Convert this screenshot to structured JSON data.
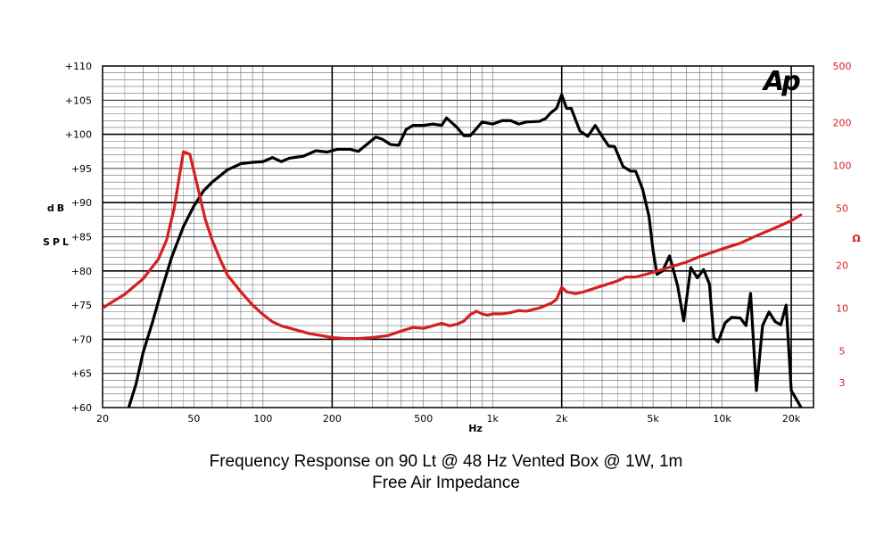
{
  "chart_data": {
    "type": "line",
    "title": "Frequency Response on 90 Lt @ 48 Hz Vented Box @ 1W, 1m",
    "subtitle": "Free Air Impedance",
    "logo": "Ap",
    "xlabel": "Hz",
    "ylabel": "dB SPL",
    "ylabel_right": "Ω",
    "x_scale": "log",
    "xlim": [
      20,
      25000
    ],
    "ylim": [
      60,
      110
    ],
    "ylim_right_log": [
      2,
      500
    ],
    "grid": true,
    "x_ticks": [
      {
        "value": 20,
        "label": "20"
      },
      {
        "value": 50,
        "label": "50"
      },
      {
        "value": 100,
        "label": "100"
      },
      {
        "value": 200,
        "label": "200"
      },
      {
        "value": 500,
        "label": "500"
      },
      {
        "value": 1000,
        "label": "1k"
      },
      {
        "value": 2000,
        "label": "2k"
      },
      {
        "value": 5000,
        "label": "5k"
      },
      {
        "value": 10000,
        "label": "10k"
      },
      {
        "value": 20000,
        "label": "20k"
      }
    ],
    "y_ticks": [
      {
        "value": 60,
        "label": "+60"
      },
      {
        "value": 65,
        "label": "+65"
      },
      {
        "value": 70,
        "label": "+70"
      },
      {
        "value": 75,
        "label": "+75"
      },
      {
        "value": 80,
        "label": "+80"
      },
      {
        "value": 85,
        "label": "+85"
      },
      {
        "value": 90,
        "label": "+90"
      },
      {
        "value": 95,
        "label": "+95"
      },
      {
        "value": 100,
        "label": "+100"
      },
      {
        "value": 105,
        "label": "+105"
      },
      {
        "value": 110,
        "label": "+110"
      }
    ],
    "y_right_ticks": [
      {
        "value": 3,
        "label": "3"
      },
      {
        "value": 5,
        "label": "5"
      },
      {
        "value": 10,
        "label": "10"
      },
      {
        "value": 20,
        "label": "20"
      },
      {
        "value": 50,
        "label": "50"
      },
      {
        "value": 100,
        "label": "100"
      },
      {
        "value": 200,
        "label": "200"
      },
      {
        "value": 500,
        "label": "500"
      }
    ],
    "series": [
      {
        "name": "Frequency Response (dB SPL)",
        "color": "#000000",
        "axis": "left",
        "points": [
          [
            26,
            60
          ],
          [
            28,
            63.5
          ],
          [
            30,
            68
          ],
          [
            33,
            72.5
          ],
          [
            36,
            77
          ],
          [
            40,
            82
          ],
          [
            45,
            86.5
          ],
          [
            50,
            89.5
          ],
          [
            55,
            91.7
          ],
          [
            60,
            93
          ],
          [
            70,
            94.8
          ],
          [
            80,
            95.7
          ],
          [
            90,
            95.9
          ],
          [
            100,
            96
          ],
          [
            110,
            96.6
          ],
          [
            120,
            96
          ],
          [
            130,
            96.5
          ],
          [
            150,
            96.8
          ],
          [
            170,
            97.6
          ],
          [
            190,
            97.4
          ],
          [
            210,
            97.8
          ],
          [
            240,
            97.8
          ],
          [
            260,
            97.5
          ],
          [
            290,
            98.8
          ],
          [
            310,
            99.6
          ],
          [
            330,
            99.3
          ],
          [
            360,
            98.5
          ],
          [
            390,
            98.4
          ],
          [
            420,
            100.7
          ],
          [
            450,
            101.3
          ],
          [
            500,
            101.3
          ],
          [
            550,
            101.5
          ],
          [
            600,
            101.3
          ],
          [
            630,
            102.4
          ],
          [
            700,
            101
          ],
          [
            750,
            99.8
          ],
          [
            800,
            99.8
          ],
          [
            900,
            101.8
          ],
          [
            1000,
            101.5
          ],
          [
            1100,
            102
          ],
          [
            1200,
            102
          ],
          [
            1300,
            101.5
          ],
          [
            1400,
            101.8
          ],
          [
            1600,
            101.9
          ],
          [
            1700,
            102.3
          ],
          [
            1800,
            103.2
          ],
          [
            1900,
            103.8
          ],
          [
            2000,
            105.8
          ],
          [
            2100,
            103.8
          ],
          [
            2200,
            103.8
          ],
          [
            2400,
            100.5
          ],
          [
            2600,
            99.7
          ],
          [
            2800,
            101.3
          ],
          [
            3000,
            99.7
          ],
          [
            3200,
            98.3
          ],
          [
            3400,
            98.2
          ],
          [
            3700,
            95.3
          ],
          [
            4000,
            94.6
          ],
          [
            4200,
            94.6
          ],
          [
            4500,
            92
          ],
          [
            4800,
            88
          ],
          [
            5000,
            83
          ],
          [
            5200,
            79.5
          ],
          [
            5500,
            80
          ],
          [
            5900,
            82.2
          ],
          [
            6400,
            77.8
          ],
          [
            6800,
            72.7
          ],
          [
            7300,
            80.5
          ],
          [
            7800,
            79
          ],
          [
            8300,
            80.2
          ],
          [
            8800,
            78.1
          ],
          [
            9200,
            70.2
          ],
          [
            9600,
            69.6
          ],
          [
            10300,
            72.4
          ],
          [
            11000,
            73.2
          ],
          [
            12000,
            73.1
          ],
          [
            12700,
            72
          ],
          [
            13300,
            76.7
          ],
          [
            14100,
            62.5
          ],
          [
            15000,
            72
          ],
          [
            16000,
            74
          ],
          [
            17000,
            72.6
          ],
          [
            18000,
            72.1
          ],
          [
            19000,
            75
          ],
          [
            20000,
            62.5
          ],
          [
            22000,
            60.1
          ]
        ]
      },
      {
        "name": "Free Air Impedance (Ω)",
        "color": "#d42020",
        "axis": "right",
        "points": [
          [
            20,
            10
          ],
          [
            25,
            12.5
          ],
          [
            30,
            16
          ],
          [
            35,
            22
          ],
          [
            38,
            30
          ],
          [
            41,
            50
          ],
          [
            43,
            80
          ],
          [
            45,
            125
          ],
          [
            48,
            120
          ],
          [
            52,
            70
          ],
          [
            56,
            42
          ],
          [
            60,
            30
          ],
          [
            65,
            22
          ],
          [
            70,
            17
          ],
          [
            80,
            13
          ],
          [
            90,
            10.5
          ],
          [
            100,
            9
          ],
          [
            110,
            8
          ],
          [
            120,
            7.5
          ],
          [
            140,
            7
          ],
          [
            160,
            6.6
          ],
          [
            180,
            6.4
          ],
          [
            200,
            6.2
          ],
          [
            230,
            6.1
          ],
          [
            260,
            6.1
          ],
          [
            300,
            6.2
          ],
          [
            350,
            6.4
          ],
          [
            400,
            6.9
          ],
          [
            450,
            7.3
          ],
          [
            500,
            7.2
          ],
          [
            550,
            7.5
          ],
          [
            600,
            7.8
          ],
          [
            650,
            7.5
          ],
          [
            700,
            7.7
          ],
          [
            750,
            8.1
          ],
          [
            800,
            9
          ],
          [
            850,
            9.5
          ],
          [
            900,
            9.1
          ],
          [
            950,
            8.9
          ],
          [
            1000,
            9.1
          ],
          [
            1100,
            9.1
          ],
          [
            1200,
            9.3
          ],
          [
            1300,
            9.6
          ],
          [
            1400,
            9.5
          ],
          [
            1600,
            10
          ],
          [
            1800,
            10.8
          ],
          [
            1900,
            11.5
          ],
          [
            2000,
            14
          ],
          [
            2100,
            13
          ],
          [
            2300,
            12.6
          ],
          [
            2500,
            13
          ],
          [
            2800,
            13.8
          ],
          [
            3000,
            14.3
          ],
          [
            3500,
            15.5
          ],
          [
            3800,
            16.5
          ],
          [
            4200,
            16.5
          ],
          [
            5000,
            17.8
          ],
          [
            6000,
            19.5
          ],
          [
            7000,
            21
          ],
          [
            8000,
            23
          ],
          [
            9000,
            24.5
          ],
          [
            10000,
            26
          ],
          [
            12000,
            28.5
          ],
          [
            14000,
            32
          ],
          [
            16000,
            35
          ],
          [
            18000,
            38
          ],
          [
            20000,
            41
          ],
          [
            22000,
            45
          ]
        ]
      }
    ]
  }
}
